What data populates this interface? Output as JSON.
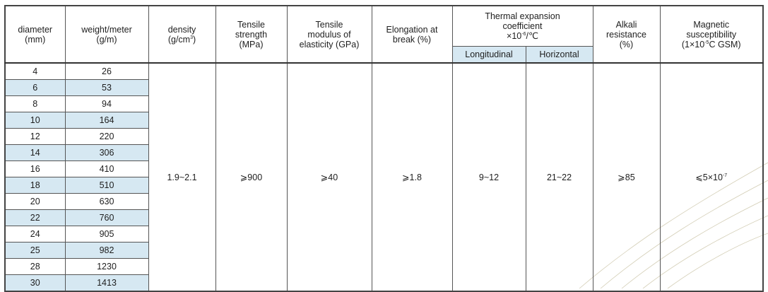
{
  "headers": {
    "diameter": "diameter\n(mm)",
    "weight": "weight/meter\n(g/m)",
    "density_main": "density\n(g/cm",
    "density_sup": "3",
    "density_end": ")",
    "tensile_strength": "Tensile\nstrength\n(MPa)",
    "modulus": "Tensile\nmodulus of\nelasticity (GPa)",
    "elongation": "Elongation at\nbreak (%)",
    "thermal_main": "Thermal expansion\ncoefficient\n×10",
    "thermal_sup": "-6",
    "thermal_end": "/℃",
    "longitudinal": "Longitudinal",
    "horizontal": "Horizontal",
    "alkali": "Alkali\nresistance\n(%)",
    "magnetic_main": "Magnetic\nsusceptibility\n(1×10",
    "magnetic_sup": "-5",
    "magnetic_end": "C GSM)"
  },
  "rows": [
    {
      "diameter": "4",
      "weight": "26"
    },
    {
      "diameter": "6",
      "weight": "53"
    },
    {
      "diameter": "8",
      "weight": "94"
    },
    {
      "diameter": "10",
      "weight": "164"
    },
    {
      "diameter": "12",
      "weight": "220"
    },
    {
      "diameter": "14",
      "weight": "306"
    },
    {
      "diameter": "16",
      "weight": "410"
    },
    {
      "diameter": "18",
      "weight": "510"
    },
    {
      "diameter": "20",
      "weight": "630"
    },
    {
      "diameter": "22",
      "weight": "760"
    },
    {
      "diameter": "24",
      "weight": "905"
    },
    {
      "diameter": "25",
      "weight": "982"
    },
    {
      "diameter": "28",
      "weight": "1230"
    },
    {
      "diameter": "30",
      "weight": "1413"
    }
  ],
  "shared": {
    "density": "1.9~2.1",
    "tensile_strength": "⩾900",
    "modulus": "⩾40",
    "elongation": "⩾1.8",
    "longitudinal": "9~12",
    "horizontal": "21~22",
    "alkali": "⩾85",
    "magnetic_main": "⩽5×10",
    "magnetic_sup": "-7"
  },
  "colors": {
    "row_shade": "#d6e8f2",
    "border": "#555555"
  }
}
